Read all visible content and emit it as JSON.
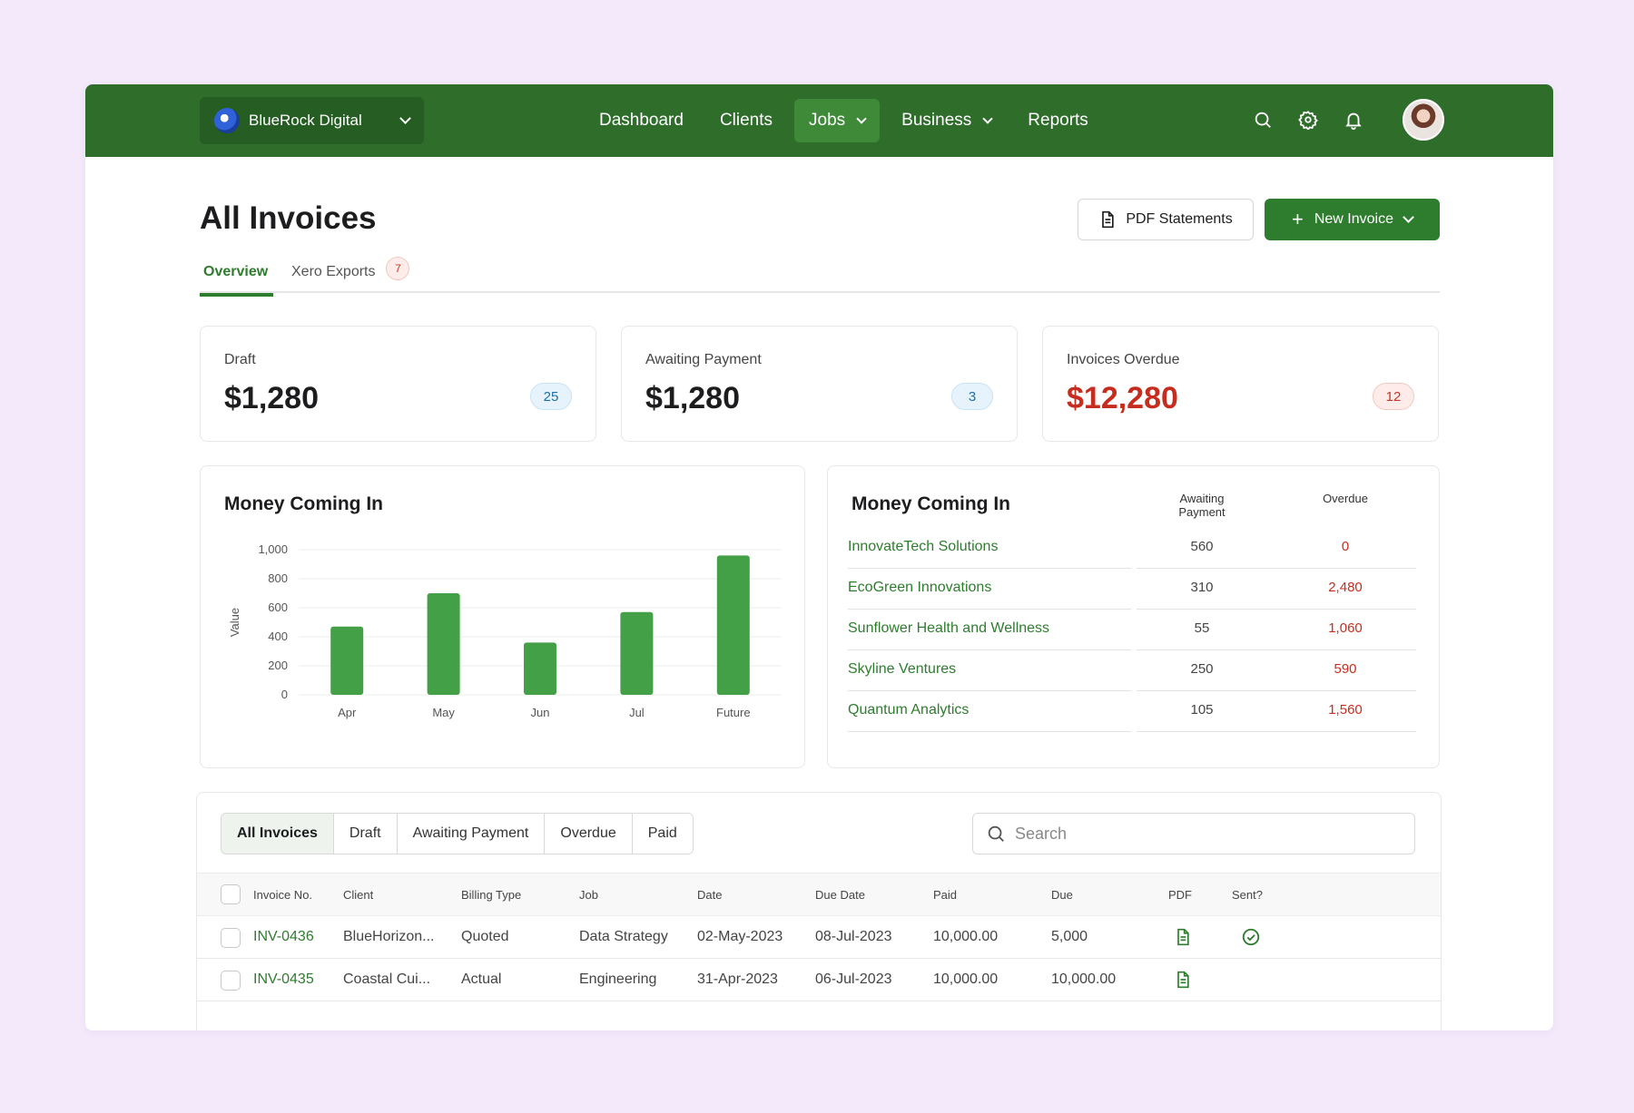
{
  "org": {
    "name": "BlueRock Digital"
  },
  "nav": {
    "items": [
      {
        "label": "Dashboard"
      },
      {
        "label": "Clients"
      },
      {
        "label": "Jobs"
      },
      {
        "label": "Business"
      },
      {
        "label": "Reports"
      }
    ],
    "active": "Jobs"
  },
  "header": {
    "title": "All Invoices",
    "pdf_label": "PDF Statements",
    "new_label": "New Invoice"
  },
  "tabs": {
    "overview": "Overview",
    "xero": "Xero Exports",
    "xero_count": "7"
  },
  "stats": [
    {
      "label": "Draft",
      "value": "$1,280",
      "count": "25"
    },
    {
      "label": "Awaiting Payment",
      "value": "$1,280",
      "count": "3"
    },
    {
      "label": "Invoices Overdue",
      "value": "$12,280",
      "count": "12"
    }
  ],
  "chart_panel": {
    "title": "Money Coming In"
  },
  "chart_data": {
    "type": "bar",
    "categories": [
      "Apr",
      "May",
      "Jun",
      "Jul",
      "Future"
    ],
    "values": [
      470,
      700,
      360,
      570,
      960
    ],
    "ylabel": "Value",
    "yticks": [
      "0",
      "200",
      "400",
      "600",
      "800",
      "1,000"
    ],
    "ylim": [
      0,
      1000
    ],
    "grid": true,
    "bar_color": "#43a047"
  },
  "money_table": {
    "title": "Money Coming In",
    "col_awaiting": "Awaiting Payment",
    "col_overdue": "Overdue",
    "rows": [
      {
        "client": "InnovateTech Solutions",
        "awaiting": "560",
        "overdue": "0"
      },
      {
        "client": "EcoGreen Innovations",
        "awaiting": "310",
        "overdue": "2,480"
      },
      {
        "client": "Sunflower Health and Wellness",
        "awaiting": "55",
        "overdue": "1,060"
      },
      {
        "client": "Skyline Ventures",
        "awaiting": "250",
        "overdue": "590"
      },
      {
        "client": "Quantum Analytics",
        "awaiting": "105",
        "overdue": "1,560"
      }
    ]
  },
  "filters": [
    "All Invoices",
    "Draft",
    "Awaiting Payment",
    "Overdue",
    "Paid"
  ],
  "search": {
    "placeholder": "Search"
  },
  "invoice_table": {
    "headers": [
      "Invoice No.",
      "Client",
      "Billing Type",
      "Job",
      "Date",
      "Due Date",
      "Paid",
      "Due",
      "PDF",
      "Sent?"
    ],
    "rows": [
      {
        "no": "INV-0436",
        "client": "BlueHorizon...",
        "billing": "Quoted",
        "job": "Data Strategy",
        "date": "02-May-2023",
        "due_date": "08-Jul-2023",
        "paid": "10,000.00",
        "due": "5,000",
        "sent": true
      },
      {
        "no": "INV-0435",
        "client": "Coastal Cui...",
        "billing": "Actual",
        "job": "Engineering",
        "date": "31-Apr-2023",
        "due_date": "06-Jul-2023",
        "paid": "10,000.00",
        "due": "10,000.00",
        "sent": false
      }
    ]
  },
  "colors": {
    "brand": "#2e6e2a",
    "accent": "#2e7d2e",
    "danger": "#c62d1f",
    "background": "#f3e9fb"
  }
}
